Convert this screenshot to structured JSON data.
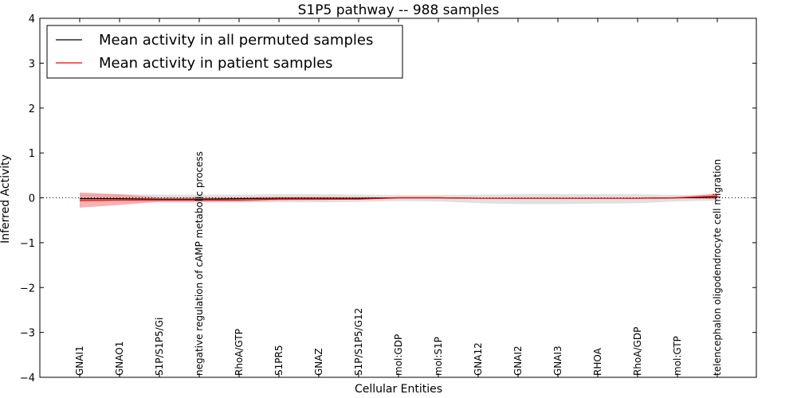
{
  "chart_data": {
    "type": "line",
    "title": "S1P5 pathway -- 988 samples",
    "xlabel": "Cellular Entities",
    "ylabel": "Inferred Activity",
    "ylim": [
      -4,
      4
    ],
    "yticks": [
      4,
      3,
      2,
      1,
      0,
      -1,
      -2,
      -3,
      -4
    ],
    "ytick_labels": [
      "4",
      "3",
      "2",
      "1",
      "0",
      "−1",
      "−2",
      "−3",
      "−4"
    ],
    "categories": [
      "GNAI1",
      "GNAO1",
      "S1P/S1P5/Gi",
      "negative regulation of cAMP metabolic process",
      "RhoA/GTP",
      "S1PR5",
      "GNAZ",
      "S1P/S1P5/G12",
      "mol:GDP",
      "mol:S1P",
      "GNA12",
      "GNAI2",
      "GNAI3",
      "RHOA",
      "RhoA/GDP",
      "mol:GTP",
      "telencephalon oligodendrocyte cell migration"
    ],
    "series": [
      {
        "name": "Mean activity in all permuted samples",
        "color": "#000000",
        "values": [
          -0.02,
          -0.02,
          -0.03,
          -0.03,
          -0.02,
          -0.01,
          -0.01,
          -0.01,
          0.0,
          0.0,
          -0.01,
          -0.01,
          -0.01,
          -0.01,
          -0.01,
          0.0,
          0.01
        ],
        "band_lower": [
          -0.1,
          -0.1,
          -0.1,
          -0.1,
          -0.1,
          -0.1,
          -0.1,
          -0.09,
          -0.07,
          -0.08,
          -0.12,
          -0.14,
          -0.14,
          -0.13,
          -0.12,
          -0.08,
          -0.06
        ],
        "band_upper": [
          0.08,
          0.08,
          0.07,
          0.07,
          0.07,
          0.08,
          0.08,
          0.07,
          0.06,
          0.06,
          0.07,
          0.08,
          0.08,
          0.08,
          0.08,
          0.06,
          0.08
        ],
        "band_color": "#bbbbbb"
      },
      {
        "name": "Mean activity in patient samples",
        "color": "#ff0000",
        "values": [
          -0.06,
          -0.05,
          -0.05,
          -0.05,
          -0.05,
          -0.03,
          -0.03,
          -0.03,
          0.0,
          0.0,
          -0.01,
          -0.01,
          -0.01,
          -0.01,
          -0.01,
          0.0,
          0.04
        ],
        "band_lower": [
          -0.22,
          -0.16,
          -0.09,
          -0.09,
          -0.09,
          -0.06,
          -0.05,
          -0.04,
          -0.01,
          -0.01,
          -0.02,
          -0.02,
          -0.02,
          -0.02,
          -0.02,
          -0.01,
          -0.03
        ],
        "band_upper": [
          0.12,
          0.08,
          0.01,
          0.01,
          0.01,
          0.02,
          0.02,
          0.01,
          0.01,
          0.01,
          0.0,
          0.0,
          0.0,
          0.0,
          0.0,
          0.01,
          0.1
        ],
        "band_color": "#f08080"
      }
    ],
    "reference_line": {
      "y": 0,
      "style": "dotted"
    },
    "legend": {
      "position": "top-left",
      "entries": [
        "Mean activity in all permuted samples",
        "Mean activity in patient samples"
      ]
    }
  }
}
